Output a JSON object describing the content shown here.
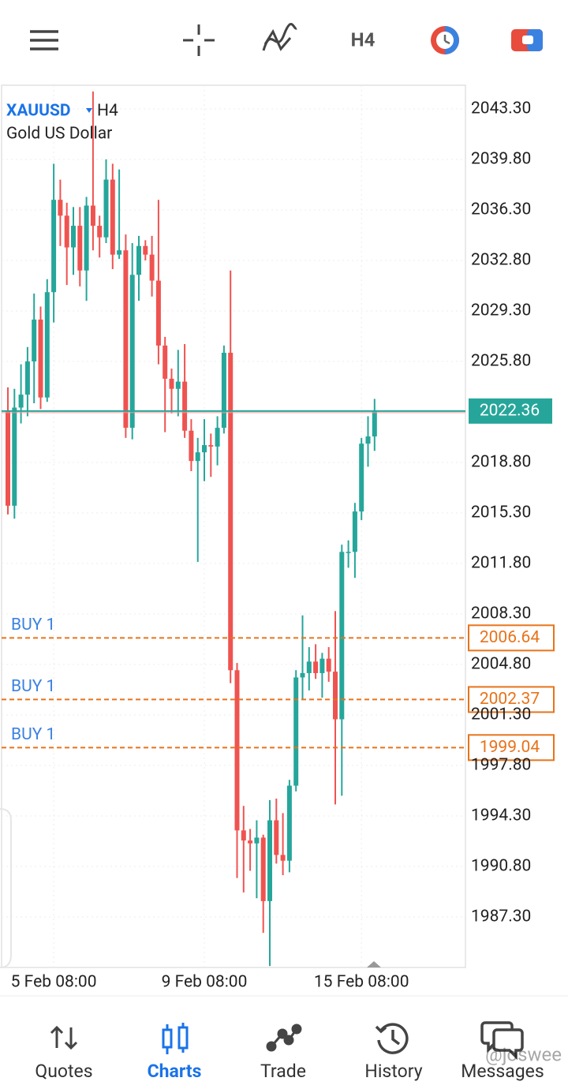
{
  "toolbar": {
    "timeframe": "H4"
  },
  "chart_data": {
    "type": "candlestick",
    "symbol": "XAUUSD",
    "timeframe": "H4",
    "description": "Gold US Dollar",
    "categories": [
      null,
      null,
      null,
      null,
      null,
      null,
      null,
      "5 Feb 08:00",
      null,
      null,
      null,
      null,
      null,
      null,
      null,
      null,
      null,
      null,
      null,
      null,
      null,
      null,
      null,
      null,
      null,
      null,
      null,
      null,
      null,
      null,
      "9 Feb 08:00",
      null,
      null,
      null,
      null,
      null,
      null,
      null,
      null,
      null,
      null,
      null,
      null,
      null,
      null,
      null,
      null,
      null,
      null,
      null,
      null,
      null,
      null,
      null,
      "15 Feb 08:00",
      null,
      null
    ],
    "open": [
      2022.4,
      2015.8,
      2022.6,
      2023.5,
      2025.8,
      2028.7,
      2023.3,
      2030.6,
      2037.0,
      2035.9,
      2033.7,
      2035.2,
      2032.1,
      2036.6,
      2035.2,
      2034.4,
      2038.4,
      2033.2,
      2033.5,
      2021.2,
      2031.8,
      2033.8,
      2033.2,
      2031.4,
      2026.9,
      2024.6,
      2023.9,
      2024.4,
      2021.0,
      2018.9,
      2019.5,
      2020.0,
      2019.9,
      2021.2,
      2026.4,
      2004.4,
      1993.3,
      1992.6,
      1992.4,
      1992.8,
      1988.4,
      1994.0,
      1991.6,
      1991.2,
      1996.4,
      2003.9,
      2004.2,
      2005.0,
      2004.2,
      2005.2,
      2004.3,
      2001.0,
      2012.6,
      2012.6,
      2015.4,
      2020.1,
      2020.6
    ],
    "high": [
      2024.0,
      2023.9,
      2025.6,
      2026.8,
      2030.5,
      2029.6,
      2031.5,
      2039.5,
      2038.4,
      2036.8,
      2036.5,
      2036.5,
      2037.2,
      2044.5,
      2035.9,
      2039.8,
      2039.5,
      2039.1,
      2034.6,
      2034.0,
      2034.5,
      2034.2,
      2034.5,
      2037.0,
      2027.5,
      2025.3,
      2026.6,
      2027.0,
      2021.8,
      2020.5,
      2021.8,
      2020.8,
      2022.0,
      2026.9,
      2032.1,
      2004.9,
      1995.0,
      1993.4,
      1994.0,
      1993.0,
      1995.4,
      1995.5,
      1994.5,
      1996.8,
      2004.4,
      2008.2,
      2006.0,
      2006.2,
      2005.6,
      2006.0,
      2008.5,
      2013.1,
      2013.4,
      2016.0,
      2020.5,
      2022.0,
      2023.2
    ],
    "low": [
      2015.2,
      2014.9,
      2021.5,
      2022.0,
      2022.9,
      2022.5,
      2023.0,
      2028.5,
      2033.8,
      2031.1,
      2031.8,
      2031.0,
      2030.0,
      2033.5,
      2033.0,
      2034.0,
      2032.2,
      2032.9,
      2020.5,
      2020.4,
      2030.0,
      2032.8,
      2030.3,
      2025.6,
      2020.9,
      2022.2,
      2022.0,
      2020.5,
      2018.2,
      2011.9,
      2017.5,
      2017.8,
      2018.6,
      2020.8,
      2003.5,
      1990.0,
      1989.0,
      1990.5,
      1988.6,
      1986.2,
      1983.9,
      1991.0,
      1990.2,
      1990.4,
      1996.0,
      2002.4,
      2003.0,
      2003.8,
      2002.5,
      2003.6,
      1995.1,
      1995.7,
      2011.5,
      2010.8,
      2014.8,
      2018.5,
      2019.6
    ],
    "close": [
      2015.8,
      2022.6,
      2023.5,
      2025.8,
      2028.7,
      2023.3,
      2030.6,
      2037.0,
      2035.9,
      2033.7,
      2035.2,
      2032.1,
      2036.6,
      2035.2,
      2034.4,
      2038.4,
      2033.2,
      2033.5,
      2021.2,
      2031.8,
      2033.8,
      2033.2,
      2031.4,
      2026.9,
      2024.6,
      2023.9,
      2024.4,
      2021.0,
      2018.9,
      2019.5,
      2020.0,
      2019.9,
      2021.2,
      2026.4,
      2004.4,
      1993.3,
      1992.6,
      1992.4,
      1992.8,
      1988.4,
      1994.0,
      1991.6,
      1991.2,
      1996.4,
      2003.9,
      2004.2,
      2005.0,
      2004.2,
      2005.2,
      2004.3,
      2001.0,
      2012.6,
      2012.6,
      2015.4,
      2020.1,
      2020.6,
      2022.36
    ],
    "up_color": "#26a69a",
    "down_color": "#ef5350",
    "ylim": [
      1983.8,
      2044.94
    ],
    "yticks": [
      {
        "value": 2043.3,
        "label": "2043.30"
      },
      {
        "value": 2039.8,
        "label": "2039.80"
      },
      {
        "value": 2036.3,
        "label": "2036.30"
      },
      {
        "value": 2032.8,
        "label": "2032.80"
      },
      {
        "value": 2029.3,
        "label": "2029.30"
      },
      {
        "value": 2025.8,
        "label": "2025.80"
      },
      {
        "value": 2018.8,
        "label": "2018.80"
      },
      {
        "value": 2015.3,
        "label": "2015.30"
      },
      {
        "value": 2011.8,
        "label": "2011.80"
      },
      {
        "value": 2008.3,
        "label": "2008.30"
      },
      {
        "value": 2004.8,
        "label": "2004.80"
      },
      {
        "value": 2001.3,
        "label": "2001.30"
      },
      {
        "value": 1997.8,
        "label": "1997.80"
      },
      {
        "value": 1994.3,
        "label": "1994.30"
      },
      {
        "value": 1990.8,
        "label": "1990.80"
      },
      {
        "value": 1987.3,
        "label": "1987.30"
      }
    ],
    "grid": true,
    "current_price": 2022.36,
    "current_color": "#26a69a",
    "order_color": "#e8731a",
    "orders": [
      {
        "label": "BUY 1",
        "price": 2006.64
      },
      {
        "label": "BUY 1",
        "price": 2002.37
      },
      {
        "label": "BUY 1",
        "price": 1999.04
      }
    ]
  },
  "nav": {
    "items": [
      "Quotes",
      "Charts",
      "Trade",
      "History",
      "Messages"
    ],
    "active": 1
  },
  "watermark": "@joswee"
}
